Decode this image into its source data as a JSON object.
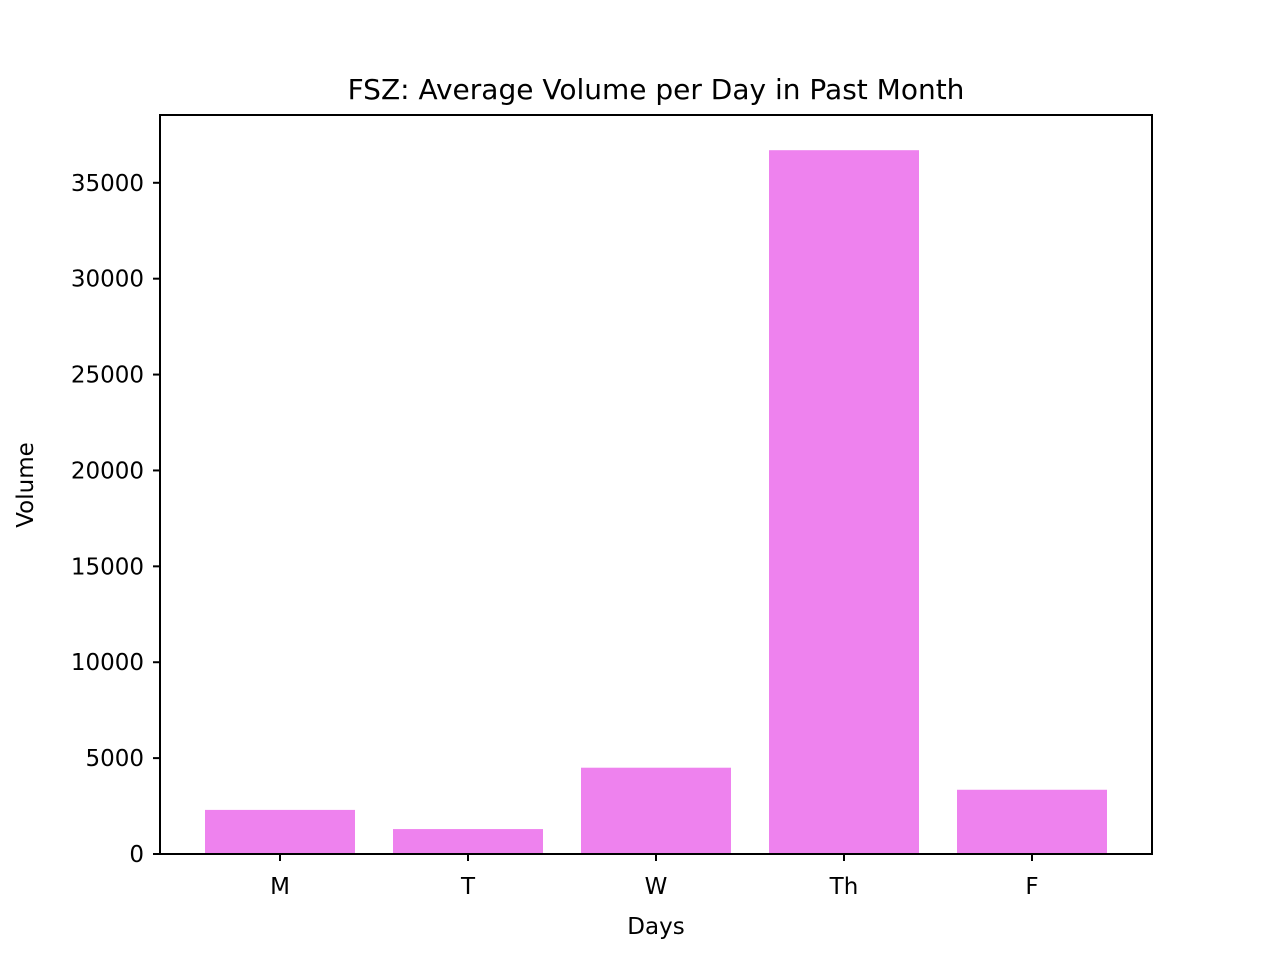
{
  "chart_data": {
    "type": "bar",
    "title": "FSZ: Average Volume per Day in Past Month",
    "xlabel": "Days",
    "ylabel": "Volume",
    "categories": [
      "M",
      "T",
      "W",
      "Th",
      "F"
    ],
    "values": [
      2300,
      1300,
      4500,
      36700,
      3350
    ],
    "ylim": [
      0,
      38535
    ],
    "yticks": [
      0,
      5000,
      10000,
      15000,
      20000,
      25000,
      30000,
      35000
    ],
    "bar_color": "#ee82ee",
    "grid": false,
    "legend": "none"
  }
}
